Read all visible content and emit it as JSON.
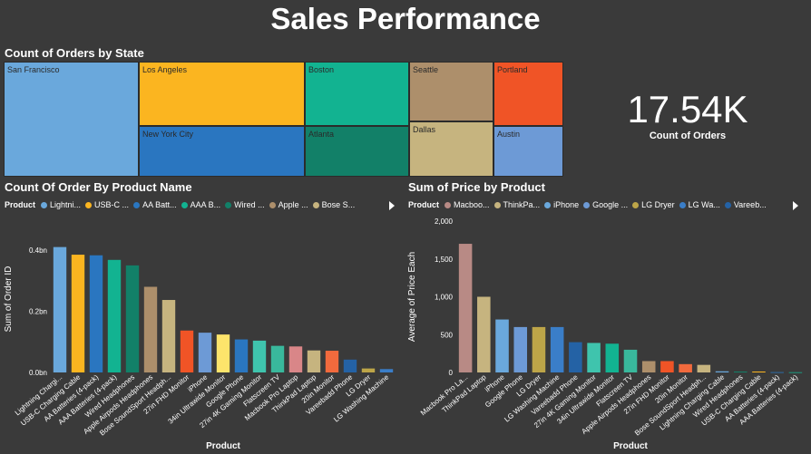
{
  "page": {
    "title": "Sales Performance"
  },
  "treemap": {
    "title": "Count of Orders by State",
    "tiles": [
      {
        "label": "San Francisco",
        "color": "#6aa8dc"
      },
      {
        "label": "Los Angeles",
        "color": "#fbb520"
      },
      {
        "label": "New York City",
        "color": "#2a76c0"
      },
      {
        "label": "Boston",
        "color": "#12b391"
      },
      {
        "label": "Atlanta",
        "color": "#128068"
      },
      {
        "label": "Seattle",
        "color": "#ad8f6b"
      },
      {
        "label": "Dallas",
        "color": "#c6b47f"
      },
      {
        "label": "Portland",
        "color": "#f05426"
      },
      {
        "label": "Austin",
        "color": "#6d9ad6"
      }
    ]
  },
  "kpi": {
    "value": "17.54K",
    "label": "Count of Orders"
  },
  "chart1": {
    "title": "Count Of Order By Product Name",
    "legend": {
      "title": "Product",
      "items": [
        {
          "label": "Lightni...",
          "color": "#6aa8dc"
        },
        {
          "label": "USB-C ...",
          "color": "#fbb520"
        },
        {
          "label": "AA Batt...",
          "color": "#2a76c0"
        },
        {
          "label": "AAA B...",
          "color": "#12b391"
        },
        {
          "label": "Wired ...",
          "color": "#128068"
        },
        {
          "label": "Apple ...",
          "color": "#ad8f6b"
        },
        {
          "label": "Bose S...",
          "color": "#c6b47f"
        }
      ]
    }
  },
  "chart2": {
    "title": "Sum of Price by Product",
    "legend": {
      "title": "Product",
      "items": [
        {
          "label": "Macboo...",
          "color": "#b88a85"
        },
        {
          "label": "ThinkPa...",
          "color": "#c6b47f"
        },
        {
          "label": "iPhone",
          "color": "#6aa8dc"
        },
        {
          "label": "Google ...",
          "color": "#6d9ad6"
        },
        {
          "label": "LG Dryer",
          "color": "#bda548"
        },
        {
          "label": "LG Wa...",
          "color": "#3a7ec8"
        },
        {
          "label": "Vareeb...",
          "color": "#2462a5"
        }
      ]
    }
  },
  "chart_data": [
    {
      "type": "bar",
      "title": "Count Of Order By Product Name",
      "xlabel": "Product",
      "ylabel": "Sum of Order ID",
      "yticks": [
        "0.0bn",
        "0.2bn",
        "0.4bn"
      ],
      "ylim": [
        0,
        0.48
      ],
      "categories": [
        "Lightning Chargi...",
        "USB-C Charging Cable",
        "AA Batteries (4-pack)",
        "AAA Batteries (4-pack)",
        "Wired Headphones",
        "Apple Airpods Headphones",
        "Bose SoundSport Headph...",
        "27in FHD Monitor",
        "iPhone",
        "34in Ultrawide Monitor",
        "Google Phone",
        "27in 4K Gaming Monitor",
        "Flatscreen TV",
        "Macbook Pro Laptop",
        "ThinkPad Laptop",
        "20in Monitor",
        "Vareebadd Phone",
        "LG Dryer",
        "LG Washing Machine"
      ],
      "values": [
        0.41,
        0.385,
        0.383,
        0.368,
        0.35,
        0.28,
        0.237,
        0.137,
        0.13,
        0.124,
        0.108,
        0.104,
        0.087,
        0.085,
        0.072,
        0.071,
        0.042,
        0.013,
        0.011
      ],
      "colors": [
        "#6aa8dc",
        "#fbb520",
        "#2a76c0",
        "#12b391",
        "#128068",
        "#ad8f6b",
        "#c6b47f",
        "#f05426",
        "#6d9ad6",
        "#fde46b",
        "#2a76c0",
        "#3fc4ad",
        "#39b89c",
        "#d98688",
        "#c6b47f",
        "#f26a3d",
        "#2462a5",
        "#bda548",
        "#3a7ec8"
      ],
      "grid": false
    },
    {
      "type": "bar",
      "title": "Sum of Price by Product",
      "xlabel": "Product",
      "ylabel": "Average of Price Each",
      "yticks": [
        "0",
        "500",
        "1,000",
        "1,500",
        "2,000"
      ],
      "ylim": [
        0,
        2000
      ],
      "categories": [
        "Macbook Pro La...",
        "ThinkPad Laptop",
        "iPhone",
        "Google Phone",
        "LG Dryer",
        "LG Washing Machine",
        "Vareebadd Phone",
        "27in 4K Gaming Monitor",
        "34in Ultrawide Monitor",
        "Flatscreen TV",
        "Apple Airpods Headphones",
        "27in FHD Monitor",
        "20in Monitor",
        "Bose SoundSport Headph...",
        "Lightning Charging Cable",
        "Wired Headphones",
        "USB-C Charging Cable",
        "AA Batteries (4-pack)",
        "AAA Batteries (4-pack)"
      ],
      "values": [
        1700,
        1000,
        700,
        600,
        600,
        600,
        400,
        390,
        380,
        300,
        150,
        150,
        110,
        100,
        15,
        12,
        12,
        4,
        3
      ],
      "colors": [
        "#b88a85",
        "#c6b47f",
        "#6aa8dc",
        "#6d9ad6",
        "#bda548",
        "#3a7ec8",
        "#2462a5",
        "#3fc4ad",
        "#12b391",
        "#39b89c",
        "#ad8f6b",
        "#f05426",
        "#f26a3d",
        "#c6b47f",
        "#6aa8dc",
        "#128068",
        "#fbb520",
        "#2a76c0",
        "#12b391"
      ],
      "grid": false
    }
  ]
}
